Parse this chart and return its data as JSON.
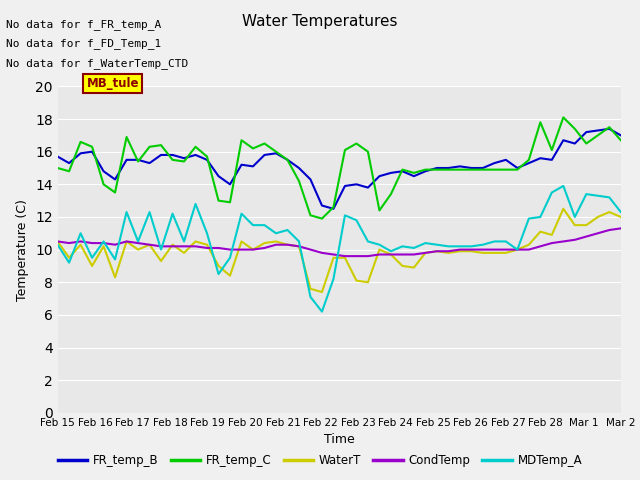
{
  "title": "Water Temperatures",
  "xlabel": "Time",
  "ylabel": "Temperature (C)",
  "ylim": [
    0,
    20
  ],
  "yticks": [
    0,
    2,
    4,
    6,
    8,
    10,
    12,
    14,
    16,
    18,
    20
  ],
  "plot_bg": "#e8e8e8",
  "fig_bg": "#f0f0f0",
  "text_annotations": [
    "No data for f_FR_temp_A",
    "No data for f_FD_Temp_1",
    "No data for f_WaterTemp_CTD"
  ],
  "mb_tule_label": "MB_tule",
  "x_labels": [
    "Feb 15",
    "Feb 16",
    "Feb 17",
    "Feb 18",
    "Feb 19",
    "Feb 20",
    "Feb 21",
    "Feb 22",
    "Feb 23",
    "Feb 24",
    "Feb 25",
    "Feb 26",
    "Feb 27",
    "Feb 28",
    "Mar 1",
    "Mar 2"
  ],
  "FR_temp_B": [
    15.7,
    15.3,
    15.9,
    16.0,
    14.8,
    14.3,
    15.5,
    15.5,
    15.3,
    15.8,
    15.8,
    15.6,
    15.8,
    15.5,
    14.5,
    14.0,
    15.2,
    15.1,
    15.8,
    15.9,
    15.5,
    15.0,
    14.3,
    12.7,
    12.5,
    13.9,
    14.0,
    13.8,
    14.5,
    14.7,
    14.8,
    14.5,
    14.8,
    15.0,
    15.0,
    15.1,
    15.0,
    15.0,
    15.3,
    15.5,
    15.0,
    15.3,
    15.6,
    15.5,
    16.7,
    16.5,
    17.2,
    17.3,
    17.4,
    17.0
  ],
  "FR_temp_C": [
    15.0,
    14.8,
    16.6,
    16.3,
    14.0,
    13.5,
    16.9,
    15.4,
    16.3,
    16.4,
    15.5,
    15.4,
    16.3,
    15.7,
    13.0,
    12.9,
    16.7,
    16.2,
    16.5,
    16.0,
    15.5,
    14.2,
    12.1,
    11.9,
    12.6,
    16.1,
    16.5,
    16.0,
    12.4,
    13.4,
    14.9,
    14.7,
    14.9,
    14.9,
    14.9,
    14.9,
    14.9,
    14.9,
    14.9,
    14.9,
    14.9,
    15.5,
    17.8,
    16.1,
    18.1,
    17.4,
    16.5,
    17.0,
    17.5,
    16.7
  ],
  "WaterT": [
    10.5,
    9.5,
    10.3,
    9.0,
    10.2,
    8.3,
    10.5,
    10.0,
    10.3,
    9.3,
    10.3,
    9.8,
    10.5,
    10.3,
    9.0,
    8.4,
    10.5,
    10.0,
    10.4,
    10.5,
    10.3,
    10.2,
    7.6,
    7.4,
    9.5,
    9.5,
    8.1,
    8.0,
    10.0,
    9.7,
    9.0,
    8.9,
    9.8,
    9.9,
    9.8,
    9.9,
    9.9,
    9.8,
    9.8,
    9.8,
    10.0,
    10.3,
    11.1,
    10.9,
    12.5,
    11.5,
    11.5,
    12.0,
    12.3,
    12.0
  ],
  "CondTemp": [
    10.5,
    10.4,
    10.5,
    10.4,
    10.4,
    10.3,
    10.5,
    10.4,
    10.3,
    10.2,
    10.2,
    10.2,
    10.2,
    10.1,
    10.1,
    10.0,
    10.0,
    10.0,
    10.1,
    10.3,
    10.3,
    10.2,
    10.0,
    9.8,
    9.7,
    9.6,
    9.6,
    9.6,
    9.7,
    9.7,
    9.7,
    9.7,
    9.8,
    9.9,
    9.9,
    10.0,
    10.0,
    10.0,
    10.0,
    10.0,
    10.0,
    10.0,
    10.2,
    10.4,
    10.5,
    10.6,
    10.8,
    11.0,
    11.2,
    11.3
  ],
  "MDTemp_A": [
    10.3,
    9.2,
    11.0,
    9.5,
    10.5,
    9.4,
    12.3,
    10.5,
    12.3,
    10.0,
    12.2,
    10.5,
    12.8,
    11.0,
    8.5,
    9.5,
    12.2,
    11.5,
    11.5,
    11.0,
    11.2,
    10.5,
    7.1,
    6.2,
    8.2,
    12.1,
    11.8,
    10.5,
    10.3,
    9.9,
    10.2,
    10.1,
    10.4,
    10.3,
    10.2,
    10.2,
    10.2,
    10.3,
    10.5,
    10.5,
    10.0,
    11.9,
    12.0,
    13.5,
    13.9,
    12.0,
    13.4,
    13.3,
    13.2,
    12.3
  ],
  "line_colors": {
    "FR_temp_B": "#0000cc",
    "FR_temp_C": "#00cc00",
    "WaterT": "#cccc00",
    "CondTemp": "#9900cc",
    "MDTemp_A": "#00cccc"
  },
  "line_width": 1.5
}
